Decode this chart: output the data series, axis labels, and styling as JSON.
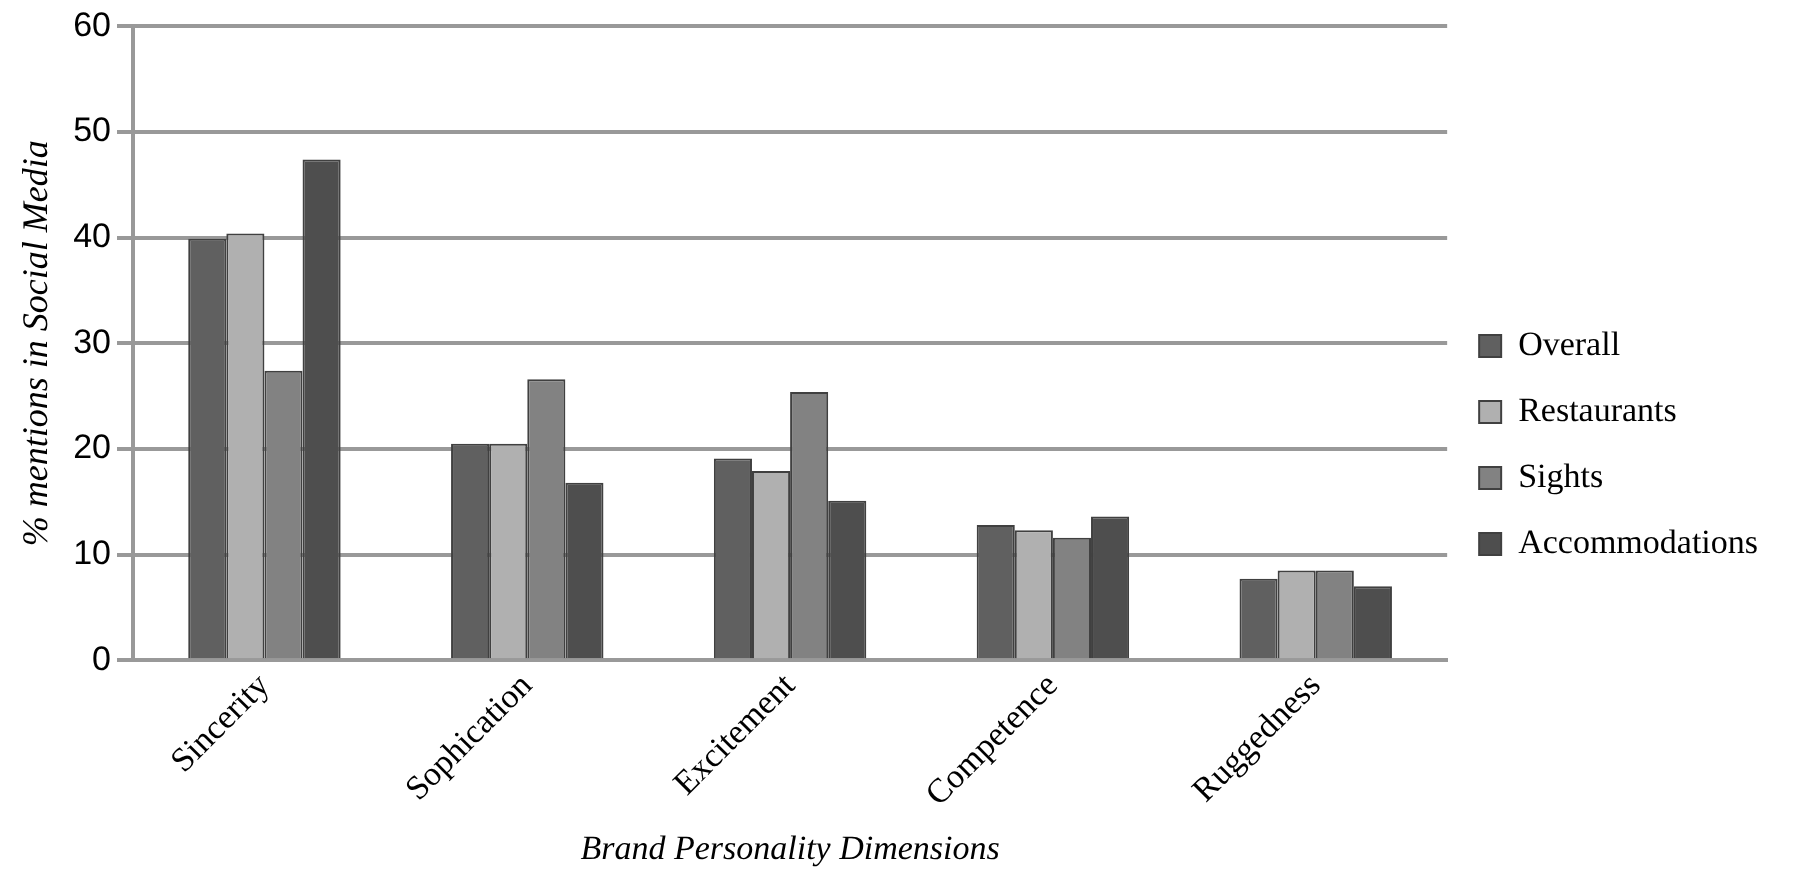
{
  "chart_data": {
    "type": "bar",
    "xlabel": "Brand Personality Dimensions",
    "ylabel": "% mentions in Social Media",
    "categories": [
      "Sincerity",
      "Sophication",
      "Excitement",
      "Competence",
      "Ruggedness"
    ],
    "series": [
      {
        "name": "Overall",
        "color": "#606060",
        "values": [
          39.9,
          20.5,
          19.1,
          12.8,
          7.7
        ]
      },
      {
        "name": "Restaurants",
        "color": "#b0b0b0",
        "values": [
          40.4,
          20.5,
          17.9,
          12.3,
          8.5
        ]
      },
      {
        "name": "Sights",
        "color": "#828282",
        "values": [
          27.4,
          26.6,
          25.4,
          11.6,
          8.5
        ]
      },
      {
        "name": "Accommodations",
        "color": "#4e4e4e",
        "values": [
          47.4,
          16.8,
          15.1,
          13.6,
          7.0
        ]
      }
    ],
    "ylim": [
      0,
      60
    ],
    "yticks": [
      0,
      10,
      20,
      30,
      40,
      50,
      60
    ],
    "grid": "y",
    "legend": "right"
  }
}
